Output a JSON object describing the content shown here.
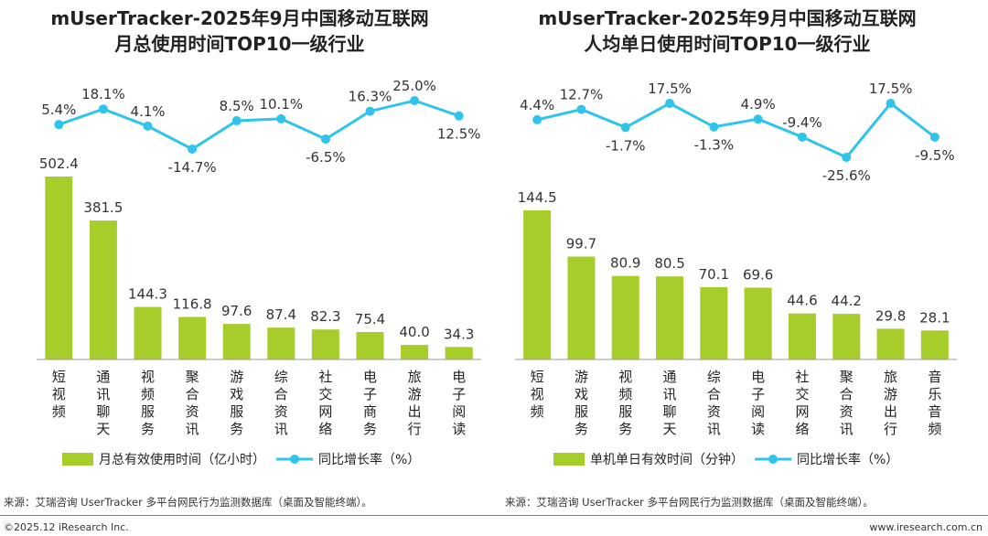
{
  "chart_data": [
    {
      "type": "bar",
      "title": [
        "mUserTracker-2025年9月中国移动互联网",
        "月总使用时间TOP10一级行业"
      ],
      "categories": [
        "短视频",
        "通讯聊天",
        "视频服务",
        "聚合资讯",
        "游戏服务",
        "综合资讯",
        "社交网络",
        "电子商务",
        "旅游出行",
        "电子阅读"
      ],
      "series": [
        {
          "name": "月总有效使用时间（亿小时）",
          "type": "bar",
          "values": [
            502.4,
            381.5,
            144.3,
            116.8,
            97.6,
            87.4,
            82.3,
            75.4,
            40.0,
            34.3
          ],
          "labels": [
            "502.4",
            "381.5",
            "144.3",
            "116.8",
            "97.6",
            "87.4",
            "82.3",
            "75.4",
            "40.0",
            "34.3"
          ]
        },
        {
          "name": "同比增长率（%）",
          "type": "line",
          "values": [
            5.4,
            18.1,
            4.1,
            -14.7,
            8.5,
            10.1,
            -6.5,
            16.3,
            25.0,
            12.5
          ],
          "labels": [
            "5.4%",
            "18.1%",
            "4.1%",
            "-14.7%",
            "8.5%",
            "10.1%",
            "-6.5%",
            "16.3%",
            "25.0%",
            "12.5%"
          ]
        }
      ],
      "legend_position": "bottom"
    },
    {
      "type": "bar",
      "title": [
        "mUserTracker-2025年9月中国移动互联网",
        "人均单日使用时间TOP10一级行业"
      ],
      "categories": [
        "短视频",
        "游戏服务",
        "视频服务",
        "通讯聊天",
        "综合资讯",
        "电子阅读",
        "社交网络",
        "聚合资讯",
        "旅游出行",
        "音乐音频"
      ],
      "series": [
        {
          "name": "单机单日有效时间（分钟）",
          "type": "bar",
          "values": [
            144.5,
            99.7,
            80.9,
            80.5,
            70.1,
            69.6,
            44.6,
            44.2,
            29.8,
            28.1
          ],
          "labels": [
            "144.5",
            "99.7",
            "80.9",
            "80.5",
            "70.1",
            "69.6",
            "44.6",
            "44.2",
            "29.8",
            "28.1"
          ]
        },
        {
          "name": "同比增长率（%）",
          "type": "line",
          "values": [
            4.4,
            12.7,
            -1.7,
            17.5,
            -1.3,
            4.9,
            -9.4,
            -25.6,
            17.5,
            -9.5
          ],
          "labels": [
            "4.4%",
            "12.7%",
            "-1.7%",
            "17.5%",
            "-1.3%",
            "4.9%",
            "-9.4%",
            "-25.6%",
            "17.5%",
            "-9.5%"
          ]
        }
      ],
      "legend_position": "bottom"
    }
  ],
  "colors": {
    "bar": "#a6cd2a",
    "line": "#2ec4ec",
    "axis": "#999999"
  },
  "source_left": "来源：艾瑞咨询 UserTracker 多平台网民行为监测数据库（桌面及智能终端）。",
  "source_right": "来源：艾瑞咨询 UserTracker 多平台网民行为监测数据库（桌面及智能终端）。",
  "footer_left": "©2025.12 iResearch Inc.",
  "footer_right": "www.iresearch.com.cn"
}
